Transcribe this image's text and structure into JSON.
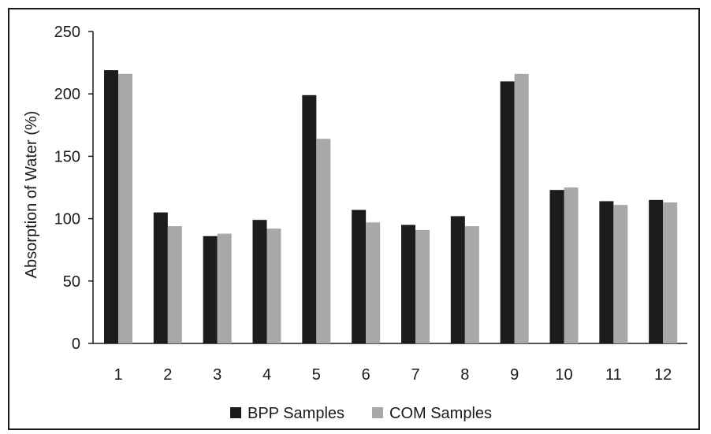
{
  "chart_data": {
    "type": "bar",
    "title": "",
    "xlabel": "",
    "ylabel": "Absorption of Water (%)",
    "ylim": [
      0,
      250
    ],
    "yticks": [
      0,
      50,
      100,
      150,
      200,
      250
    ],
    "grid": false,
    "legend_position": "bottom",
    "categories": [
      "1",
      "2",
      "3",
      "4",
      "5",
      "6",
      "7",
      "8",
      "9",
      "10",
      "11",
      "12"
    ],
    "series": [
      {
        "name": "BPP Samples",
        "color": "#1c1c1c",
        "values": [
          219,
          105,
          86,
          99,
          199,
          107,
          95,
          102,
          210,
          123,
          114,
          115
        ]
      },
      {
        "name": "COM Samples",
        "color": "#a8a8a8",
        "values": [
          216,
          94,
          88,
          92,
          164,
          97,
          91,
          94,
          216,
          125,
          111,
          113
        ]
      }
    ]
  }
}
